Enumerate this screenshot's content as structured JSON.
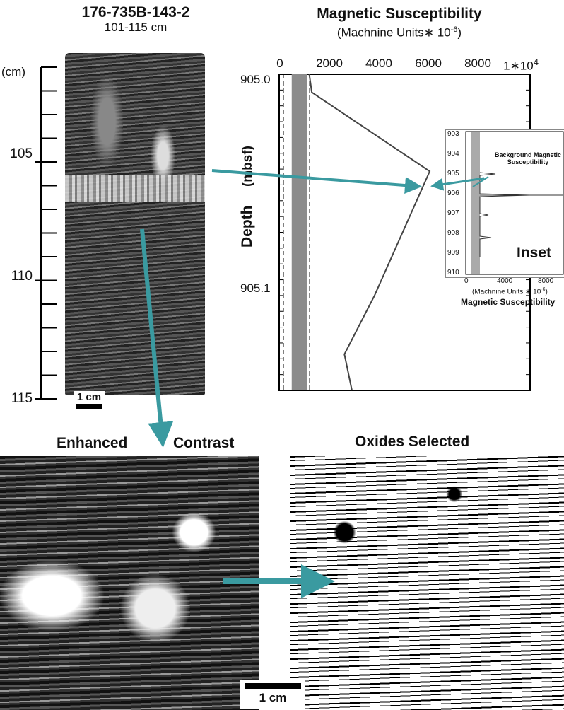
{
  "core_image": {
    "title": "176-735B-143-2",
    "interval": "101-115 cm",
    "ruler_unit": "(cm)",
    "ruler_labels": [
      "105",
      "110",
      "115"
    ],
    "scale_bar": "1 cm"
  },
  "chart_data": {
    "type": "line",
    "title": "Magnetic Susceptibility",
    "xlabel": "(Machnine Units∗ 10",
    "xlabel_exp": "-6",
    "xlabel_close": ")",
    "ylabel": "Depth",
    "ylabel_unit": "(mbsf)",
    "x_ticks": [
      "0",
      "2000",
      "4000",
      "6000",
      "8000",
      "1∗10"
    ],
    "x_last_exp": "4",
    "y_ticks": [
      "905.0",
      "905.1"
    ],
    "xlim": [
      0,
      10000
    ],
    "ylim": [
      905.0,
      905.14
    ],
    "series": [
      {
        "x": [
          1200,
          1300,
          6000,
          3800,
          2600,
          2900
        ],
        "y": [
          905.0,
          905.008,
          905.043,
          905.098,
          905.124,
          905.14
        ]
      }
    ],
    "background_band": [
      500,
      1100
    ]
  },
  "inset": {
    "label": "Inset",
    "annotation_line1": "Background Magnetic",
    "annotation_line2": "Susceptibility",
    "y_ticks": [
      "903",
      "904",
      "905",
      "906",
      "907",
      "908",
      "909",
      "910"
    ],
    "x_ticks": [
      "0",
      "4000",
      "8000"
    ],
    "x_unit": "(Machnine Units ∗ 10",
    "x_unit_exp": "-6",
    "x_unit_close": ")",
    "x_title": "Magnetic Susceptibility"
  },
  "enhanced": {
    "title_left": "Enhanced",
    "title_right": "Contrast"
  },
  "oxides": {
    "title": "Oxides Selected",
    "scale_bar": "1 cm"
  },
  "colors": {
    "arrow": "#3a9aa0",
    "band": "#8c8c8c"
  }
}
